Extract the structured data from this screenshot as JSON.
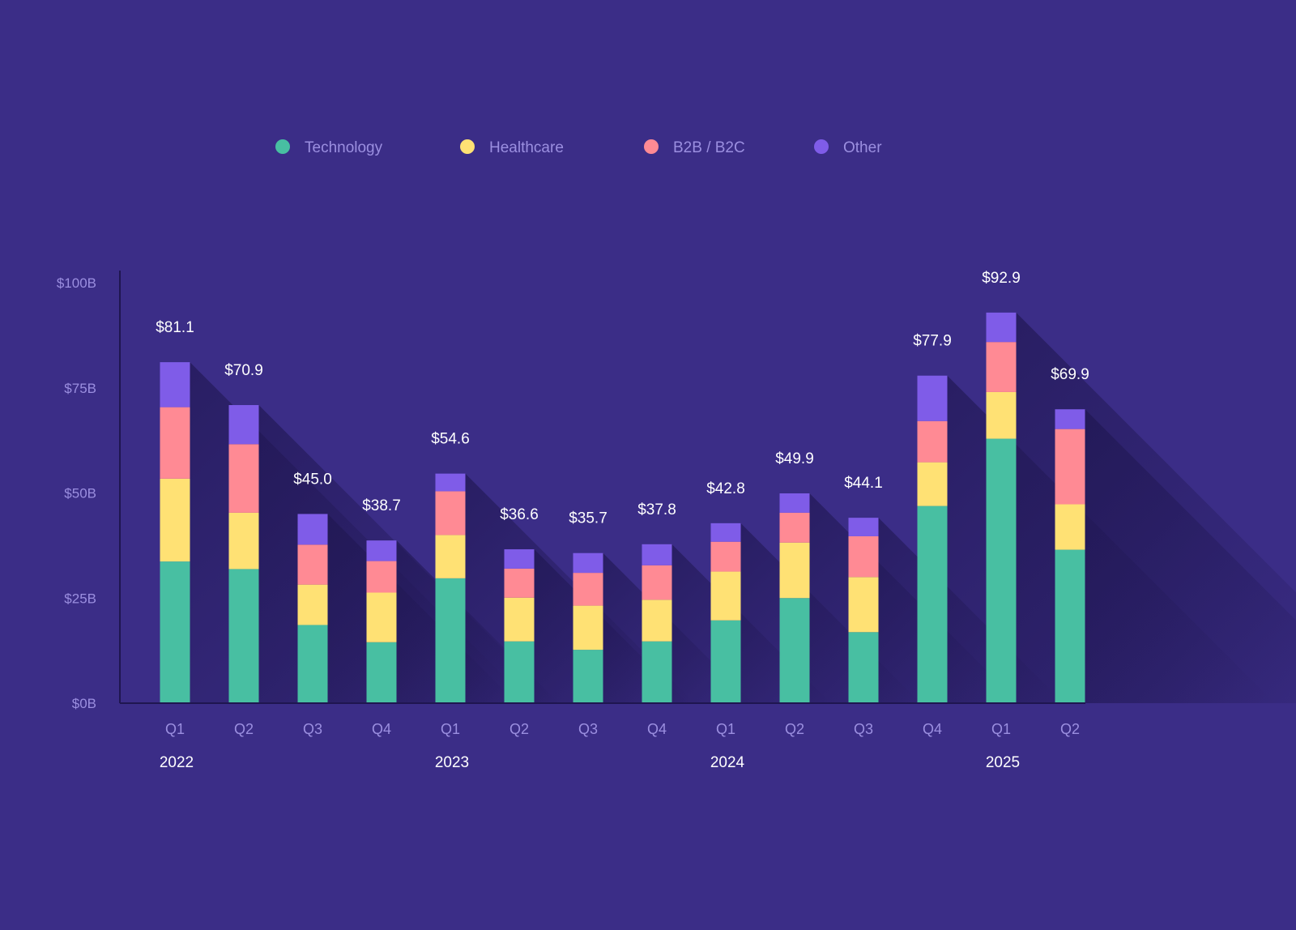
{
  "colors": {
    "background": "#3b2d87",
    "axis_text": "#9b8fe0",
    "label_text": "#ffffff",
    "axis_line": "#1f1650",
    "shadow": "#241a5e"
  },
  "chart_data": {
    "type": "bar",
    "stacked": true,
    "title": "",
    "xlabel": "",
    "ylabel": "",
    "ylim": [
      0,
      100
    ],
    "y_ticks": [
      0,
      25,
      50,
      75,
      100
    ],
    "y_tick_labels": [
      "$0B",
      "$25B",
      "$50B",
      "$75B",
      "$100B"
    ],
    "legend_position": "top",
    "grid": false,
    "categories": [
      "Q1",
      "Q2",
      "Q3",
      "Q4",
      "Q1",
      "Q2",
      "Q3",
      "Q4",
      "Q1",
      "Q2",
      "Q3",
      "Q4",
      "Q1",
      "Q2"
    ],
    "category_years": [
      "2022",
      "2022",
      "2022",
      "2022",
      "2023",
      "2023",
      "2023",
      "2023",
      "2024",
      "2024",
      "2024",
      "2024",
      "2025",
      "2025"
    ],
    "year_labels": [
      {
        "label": "2022",
        "first": 0,
        "last": 0
      },
      {
        "label": "2023",
        "first": 4,
        "last": 4
      },
      {
        "label": "2024",
        "first": 8,
        "last": 8
      },
      {
        "label": "2025",
        "first": 12,
        "last": 12
      }
    ],
    "totals": [
      "$81.1",
      "$70.9",
      "$45.0",
      "$38.7",
      "$54.6",
      "$36.6",
      "$35.7",
      "$37.8",
      "$42.8",
      "$49.9",
      "$44.1",
      "$77.9",
      "$92.9",
      "$69.9"
    ],
    "series": [
      {
        "name": "Technology",
        "color": "#48bfa2",
        "values": [
          33.7,
          31.9,
          18.6,
          14.5,
          29.7,
          14.7,
          12.7,
          14.7,
          19.7,
          25.0,
          16.9,
          46.9,
          62.9,
          36.5
        ]
      },
      {
        "name": "Healthcare",
        "color": "#ffe174",
        "values": [
          19.7,
          13.4,
          9.6,
          11.8,
          10.3,
          10.4,
          10.5,
          9.9,
          11.6,
          13.2,
          13.1,
          10.4,
          11.1,
          10.8
        ]
      },
      {
        "name": "B2B / B2C",
        "color": "#ff8a94",
        "values": [
          17.0,
          16.3,
          9.5,
          7.5,
          10.4,
          6.9,
          7.8,
          8.2,
          7.1,
          7.1,
          9.7,
          9.8,
          11.9,
          17.9
        ]
      },
      {
        "name": "Other",
        "color": "#7f5ce8",
        "values": [
          10.7,
          9.3,
          7.3,
          4.9,
          4.2,
          4.6,
          4.7,
          5.0,
          4.4,
          4.6,
          4.4,
          10.8,
          7.0,
          4.7
        ]
      }
    ]
  }
}
